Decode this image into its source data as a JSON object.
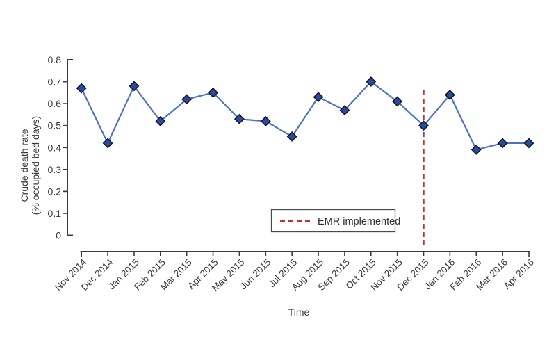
{
  "chart_data": {
    "type": "line",
    "title": "",
    "xlabel": "Time",
    "ylabel_line1": "Crude death rate",
    "ylabel_line2": "(% occupied bed days)",
    "x_categories": [
      "Nov 2014",
      "Dec 2014",
      "Jan 2015",
      "Feb 2015",
      "Mar 2015",
      "Apr 2015",
      "May 2015",
      "Jun 2015",
      "Jul 2015",
      "Aug 2015",
      "Sep 2015",
      "Oct 2015",
      "Nov 2015",
      "Dec 2015",
      "Jan 2016",
      "Feb 2016",
      "Mar 2016",
      "Apr 2016"
    ],
    "series": [
      {
        "name": "Crude death rate",
        "values": [
          0.67,
          0.42,
          0.68,
          0.52,
          0.62,
          0.65,
          0.53,
          0.52,
          0.45,
          0.63,
          0.57,
          0.7,
          0.61,
          0.5,
          0.64,
          0.39,
          0.42,
          0.42
        ]
      }
    ],
    "ylim": [
      0,
      0.8
    ],
    "yticks": [
      0,
      0.1,
      0.2,
      0.3,
      0.4,
      0.5,
      0.6,
      0.7,
      0.8
    ],
    "ytick_labels": [
      "0",
      "0.1",
      "0.2",
      "0.3",
      "0.4",
      "0.5",
      "0.6",
      "0.7",
      "0.8"
    ],
    "grid": false,
    "marker": "diamond",
    "annotation_vline": {
      "x": "Dec 2015",
      "label": "EMR implemented",
      "style": "dashed"
    },
    "legend": {
      "position": "inside-bottom-center",
      "entries": [
        {
          "label": "EMR implemented",
          "style": "dashed",
          "color": "#c4302b"
        }
      ]
    },
    "colors": {
      "line": "#4e72c0",
      "marker_fill": "#2b4a9d",
      "marker_edge": "#10151f",
      "vline": "#c4302b",
      "axis": "#3b3b3b",
      "text": "#383838"
    }
  }
}
